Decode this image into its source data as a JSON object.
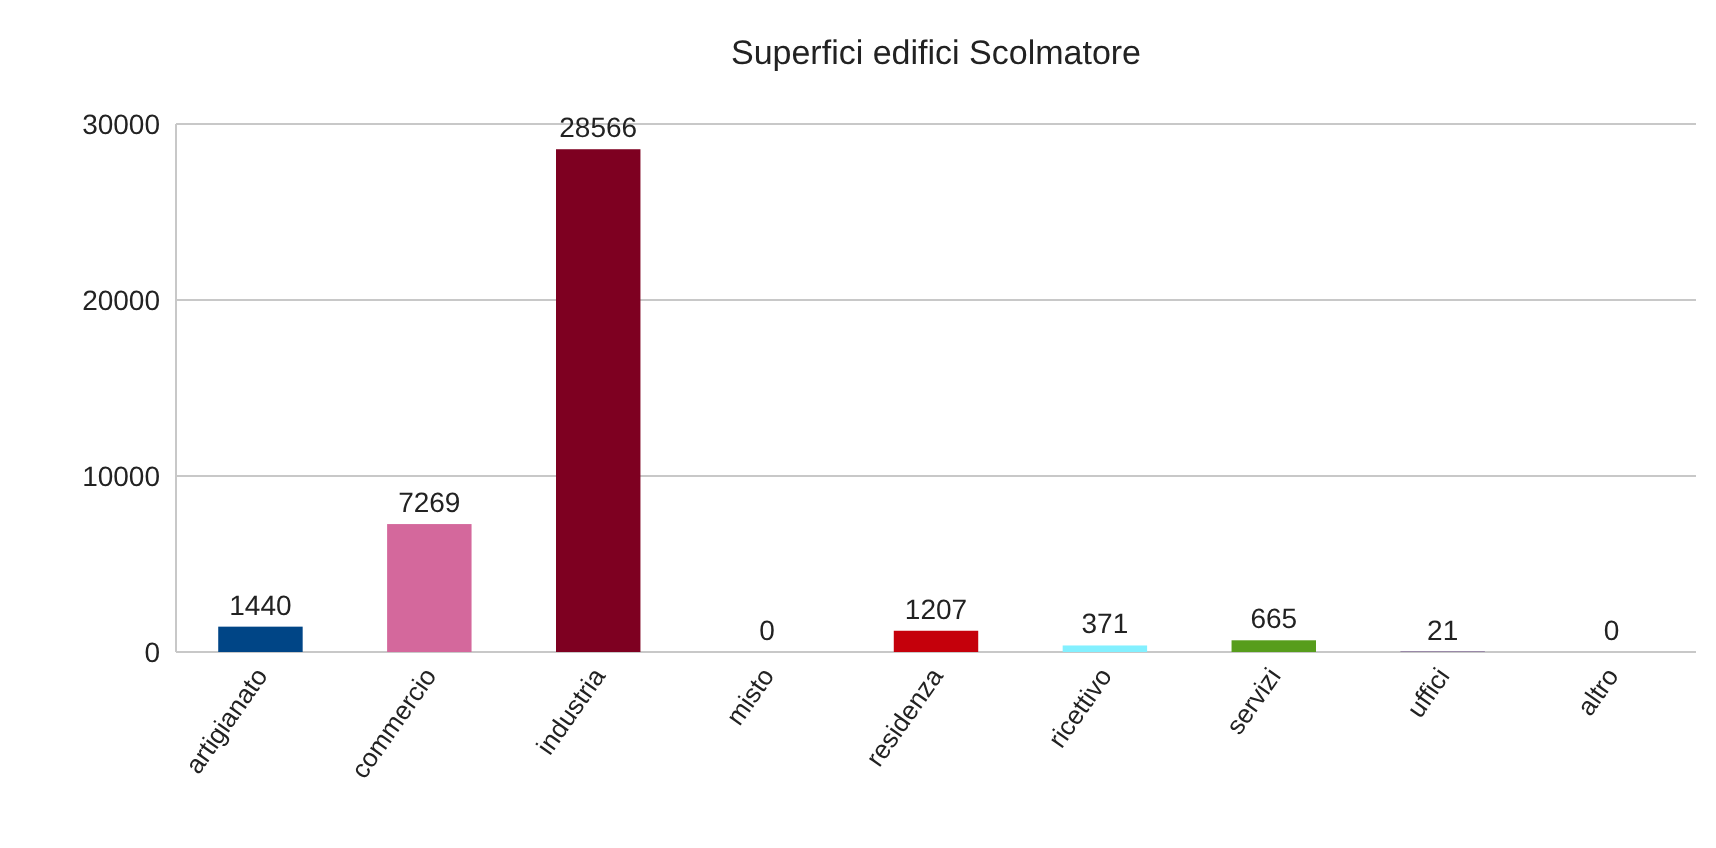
{
  "chart_data": {
    "type": "bar",
    "title": "Superfici edifici Scolmatore",
    "categories": [
      "artigianato",
      "commercio",
      "industria",
      "misto",
      "residenza",
      "ricettivo",
      "servizi",
      "uffici",
      "altro"
    ],
    "values": [
      1440,
      7269,
      28566,
      0,
      1207,
      371,
      665,
      21,
      0
    ],
    "colors": [
      "#004586",
      "#d4689c",
      "#7e0021",
      "#ff950e",
      "#c5000b",
      "#83f0ff",
      "#579d1c",
      "#4b1f6f",
      "#aecf00"
    ],
    "ylim": [
      0,
      30000
    ],
    "yticks": [
      0,
      10000,
      20000,
      30000
    ],
    "grid": "y",
    "data_labels": true
  }
}
